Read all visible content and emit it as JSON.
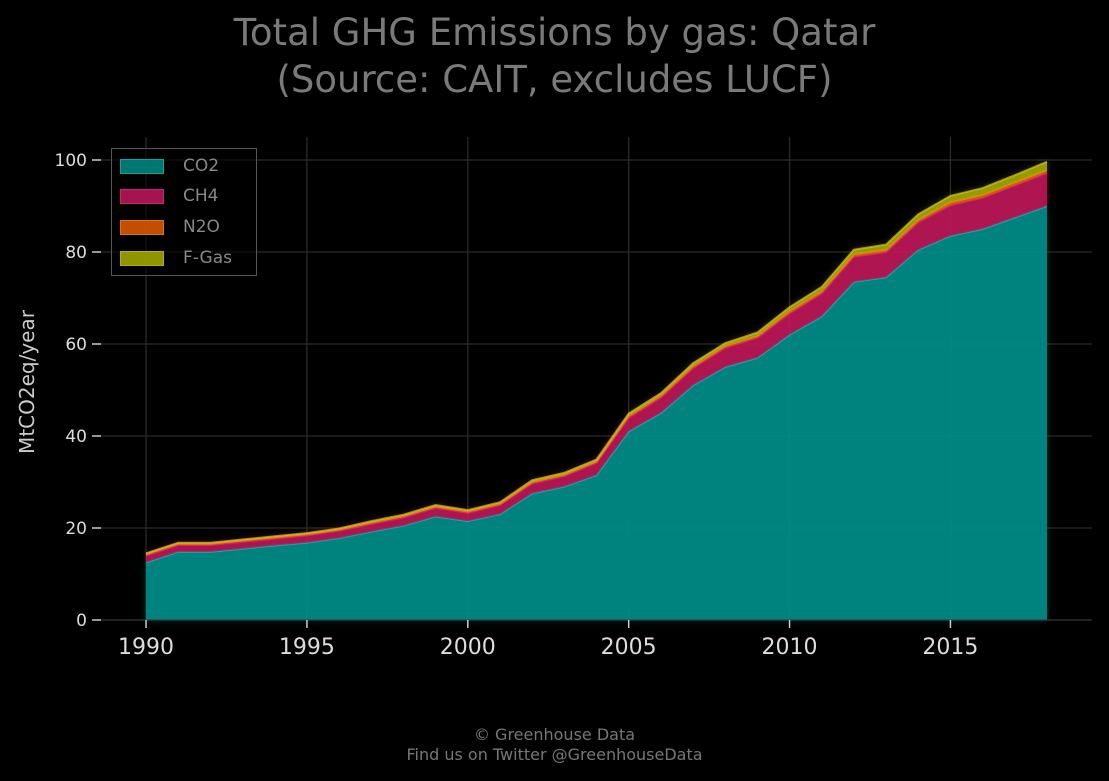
{
  "title_line1": "Total GHG Emissions by gas: Qatar",
  "title_line2": "(Source: CAIT, excludes LUCF)",
  "footer_line1": "© Greenhouse Data",
  "footer_line2": "Find us on Twitter @GreenhouseData",
  "colors": {
    "background": "#000000",
    "co2": "#008b87",
    "ch4": "#c2185b",
    "n2o": "#e65c00",
    "fgas": "#a8b000"
  },
  "legend": [
    "CO2",
    "CH4",
    "N2O",
    "F-Gas"
  ],
  "chart_data": {
    "type": "area",
    "stacked": true,
    "ylabel": "MtCO2eq/year",
    "xlabel": "",
    "x": [
      1990,
      1991,
      1992,
      1993,
      1994,
      1995,
      1996,
      1997,
      1998,
      1999,
      2000,
      2001,
      2002,
      2003,
      2004,
      2005,
      2006,
      2007,
      2008,
      2009,
      2010,
      2011,
      2012,
      2013,
      2014,
      2015,
      2016,
      2017,
      2018
    ],
    "xticks": [
      1990,
      1995,
      2000,
      2005,
      2010,
      2015
    ],
    "yticks": [
      0,
      20,
      40,
      60,
      80,
      100
    ],
    "xlim": [
      1988.6,
      2019.4
    ],
    "ylim": [
      0,
      105
    ],
    "grid": true,
    "legend_position": "top-left",
    "series": [
      {
        "name": "CO2",
        "values": [
          12.5,
          14.8,
          14.8,
          15.5,
          16.2,
          16.8,
          17.8,
          19.2,
          20.5,
          22.5,
          21.5,
          23.0,
          27.5,
          29.0,
          31.5,
          41.0,
          45.0,
          51.0,
          55.0,
          57.0,
          62.0,
          66.0,
          73.5,
          74.5,
          80.5,
          83.5,
          85.0,
          87.5,
          90.0
        ]
      },
      {
        "name": "CH4",
        "values": [
          1.5,
          1.5,
          1.5,
          1.5,
          1.5,
          1.6,
          1.6,
          1.7,
          1.8,
          1.9,
          1.8,
          2.0,
          2.2,
          2.3,
          2.7,
          3.0,
          3.4,
          3.8,
          4.2,
          4.4,
          4.7,
          5.0,
          5.5,
          5.5,
          6.0,
          6.7,
          6.8,
          7.0,
          7.2
        ]
      },
      {
        "name": "N2O",
        "values": [
          0.3,
          0.3,
          0.3,
          0.3,
          0.3,
          0.3,
          0.3,
          0.3,
          0.3,
          0.3,
          0.3,
          0.3,
          0.3,
          0.3,
          0.3,
          0.4,
          0.4,
          0.4,
          0.4,
          0.4,
          0.5,
          0.5,
          0.5,
          0.5,
          0.5,
          0.6,
          0.6,
          0.6,
          0.6
        ]
      },
      {
        "name": "F-Gas",
        "values": [
          0.2,
          0.2,
          0.2,
          0.2,
          0.2,
          0.2,
          0.2,
          0.3,
          0.3,
          0.3,
          0.3,
          0.3,
          0.4,
          0.4,
          0.4,
          0.5,
          0.5,
          0.6,
          0.6,
          0.7,
          0.8,
          0.9,
          1.0,
          1.1,
          1.2,
          1.4,
          1.5,
          1.6,
          1.8
        ]
      }
    ]
  }
}
